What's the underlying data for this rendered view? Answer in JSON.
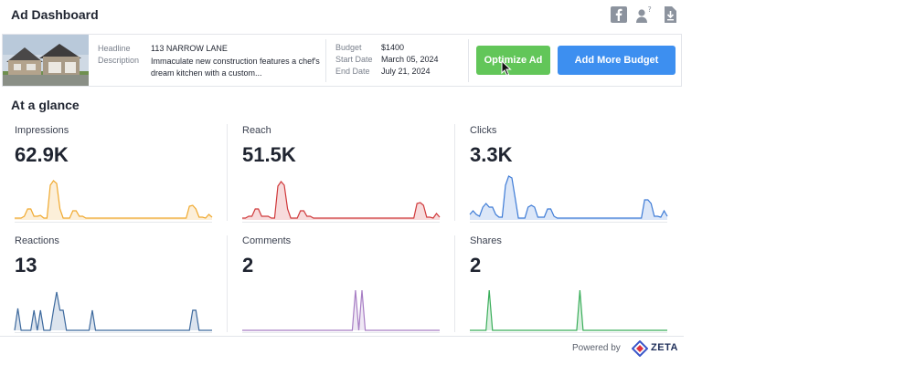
{
  "header": {
    "title": "Ad Dashboard",
    "icons": [
      "facebook-icon",
      "user-help-icon",
      "download-icon"
    ]
  },
  "ad": {
    "headline_label": "Headline",
    "headline": "113 NARROW LANE",
    "description_label": "Description",
    "description": "Immaculate new construction features a chef's dream kitchen with a custom...",
    "budget_label": "Budget",
    "budget": "$1400",
    "start_label": "Start Date",
    "start": "March 05, 2024",
    "end_label": "End Date",
    "end": "July 21, 2024",
    "optimize_label": "Optimize Ad",
    "add_budget_label": "Add More Budget"
  },
  "section_title": "At a glance",
  "colors": {
    "impressions": "#f0a92e",
    "reach": "#d0393b",
    "clicks": "#3d7bd6",
    "reactions": "#3e6a9e",
    "comments": "#a77dc4",
    "shares": "#3aae5a",
    "optimize_btn": "#62c659",
    "budget_btn": "#3d8ff0"
  },
  "metrics": {
    "impressions": {
      "label": "Impressions",
      "value": "62.9K",
      "series": [
        2,
        2,
        2,
        4,
        12,
        12,
        4,
        4,
        5,
        2,
        2,
        38,
        43,
        40,
        12,
        2,
        2,
        2,
        10,
        10,
        4,
        4,
        2,
        2,
        2,
        2,
        2,
        2,
        2,
        2,
        2,
        2,
        2,
        2,
        2,
        2,
        2,
        2,
        2,
        2,
        2,
        2,
        2,
        2,
        2,
        2,
        2,
        2,
        2,
        2,
        2,
        2,
        2,
        2,
        15,
        16,
        12,
        3,
        3,
        2,
        6,
        3
      ]
    },
    "reach": {
      "label": "Reach",
      "value": "51.5K",
      "series": [
        2,
        2,
        4,
        4,
        12,
        12,
        4,
        4,
        4,
        2,
        2,
        37,
        42,
        38,
        12,
        2,
        2,
        2,
        10,
        10,
        4,
        4,
        2,
        2,
        2,
        2,
        2,
        2,
        2,
        2,
        2,
        2,
        2,
        2,
        2,
        2,
        2,
        2,
        2,
        2,
        2,
        2,
        2,
        2,
        2,
        2,
        2,
        2,
        2,
        2,
        2,
        2,
        2,
        2,
        18,
        19,
        16,
        3,
        3,
        2,
        7,
        3
      ]
    },
    "clicks": {
      "label": "Clicks",
      "value": "3.3K",
      "series": [
        6,
        10,
        6,
        4,
        14,
        18,
        14,
        14,
        6,
        3,
        3,
        38,
        48,
        46,
        24,
        2,
        2,
        2,
        14,
        16,
        14,
        3,
        3,
        3,
        12,
        12,
        4,
        2,
        2,
        2,
        2,
        2,
        2,
        2,
        2,
        2,
        2,
        2,
        2,
        2,
        2,
        2,
        2,
        2,
        2,
        2,
        2,
        2,
        2,
        2,
        2,
        2,
        2,
        2,
        22,
        22,
        18,
        4,
        4,
        3,
        10,
        4
      ]
    },
    "reactions": {
      "label": "Reactions",
      "value": "13",
      "series": [
        0,
        24,
        0,
        0,
        0,
        0,
        22,
        0,
        22,
        0,
        0,
        0,
        22,
        42,
        22,
        22,
        0,
        0,
        0,
        0,
        0,
        0,
        0,
        0,
        22,
        0,
        0,
        0,
        0,
        0,
        0,
        0,
        0,
        0,
        0,
        0,
        0,
        0,
        0,
        0,
        0,
        0,
        0,
        0,
        0,
        0,
        0,
        0,
        0,
        0,
        0,
        0,
        0,
        0,
        0,
        22,
        22,
        0,
        0,
        0,
        0,
        0
      ]
    },
    "comments": {
      "label": "Comments",
      "value": "2",
      "series": [
        0,
        0,
        0,
        0,
        0,
        0,
        0,
        0,
        0,
        0,
        0,
        0,
        0,
        0,
        0,
        0,
        0,
        0,
        0,
        0,
        0,
        0,
        0,
        0,
        0,
        0,
        0,
        0,
        0,
        0,
        0,
        0,
        0,
        0,
        0,
        44,
        0,
        44,
        0,
        0,
        0,
        0,
        0,
        0,
        0,
        0,
        0,
        0,
        0,
        0,
        0,
        0,
        0,
        0,
        0,
        0,
        0,
        0,
        0,
        0,
        0,
        0
      ]
    },
    "shares": {
      "label": "Shares",
      "value": "2",
      "series": [
        0,
        0,
        0,
        0,
        0,
        0,
        44,
        0,
        0,
        0,
        0,
        0,
        0,
        0,
        0,
        0,
        0,
        0,
        0,
        0,
        0,
        0,
        0,
        0,
        0,
        0,
        0,
        0,
        0,
        0,
        0,
        0,
        0,
        0,
        44,
        0,
        0,
        0,
        0,
        0,
        0,
        0,
        0,
        0,
        0,
        0,
        0,
        0,
        0,
        0,
        0,
        0,
        0,
        0,
        0,
        0,
        0,
        0,
        0,
        0,
        0,
        0
      ]
    }
  },
  "footer": {
    "powered_by": "Powered by",
    "brand": "ZETA"
  }
}
